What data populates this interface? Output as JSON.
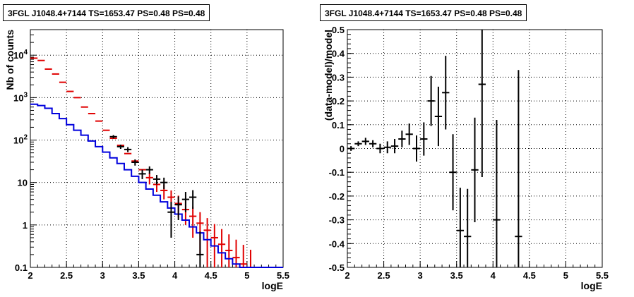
{
  "chart_data": [
    {
      "type": "line",
      "title": "3FGL J1048.4+7144 TS=1653.47 PS=0.48 PS=0.48",
      "xlabel": "logE",
      "ylabel": "Nb of counts",
      "xlim": [
        2,
        5.5
      ],
      "ylim": [
        0.1,
        40000
      ],
      "yscale": "log",
      "grid": true,
      "x_ticks": [
        "2",
        "2.5",
        "3",
        "3.5",
        "4",
        "4.5",
        "5",
        "5.5"
      ],
      "y_ticks": [
        "0.1",
        "1",
        "10",
        "10^2",
        "10^3",
        "10^4"
      ],
      "colors": {
        "data": "#000000",
        "model_counts": "#e00000",
        "model_curve": "#0000dd"
      },
      "series": [
        {
          "role": "model_counts",
          "x": [
            2.05,
            2.15,
            2.25,
            2.35,
            2.45,
            2.55,
            2.65,
            2.75,
            2.85,
            2.95,
            3.05,
            3.15,
            3.25,
            3.35,
            3.45,
            3.55,
            3.65,
            3.75,
            3.85,
            3.95,
            4.05,
            4.15,
            4.25,
            4.35,
            4.45,
            4.55,
            4.65,
            4.75,
            4.85,
            4.95,
            5.05
          ],
          "y": [
            8500,
            7500,
            4700,
            3600,
            2300,
            1400,
            1000,
            600,
            420,
            280,
            170,
            110,
            75,
            48,
            32,
            20,
            13,
            9,
            6.5,
            4.5,
            3.2,
            2.3,
            1.6,
            1.1,
            0.75,
            0.5,
            0.35,
            0.25,
            0.17,
            0.12,
            0.08
          ],
          "yerr": [
            0,
            0,
            0,
            0,
            0,
            0,
            0,
            0,
            0,
            0,
            0,
            0,
            0,
            0,
            0,
            0,
            4,
            3,
            2.5,
            2,
            1.7,
            1.3,
            1.1,
            0.9,
            0.7,
            0.55,
            0.45,
            0.35,
            0.28,
            0.22,
            0.18
          ]
        },
        {
          "role": "model_curve",
          "step_x": [
            2.0,
            2.1,
            2.2,
            2.3,
            2.4,
            2.5,
            2.6,
            2.7,
            2.8,
            2.9,
            3.0,
            3.1,
            3.2,
            3.3,
            3.4,
            3.5,
            3.6,
            3.7,
            3.8,
            3.9,
            4.0,
            4.1,
            4.2,
            4.3,
            4.4,
            4.5,
            4.6,
            4.7,
            4.8,
            4.9,
            5.0,
            5.1,
            5.2,
            5.3,
            5.4,
            5.5
          ],
          "y": [
            700,
            650,
            560,
            420,
            320,
            230,
            170,
            130,
            95,
            70,
            52,
            38,
            28,
            20,
            14,
            10,
            7,
            5,
            3.5,
            2.5,
            1.8,
            1.3,
            0.9,
            0.65,
            0.45,
            0.32,
            0.22,
            0.16,
            0.12,
            0.1,
            0.1,
            0.1,
            0.1,
            0.1,
            0.1
          ]
        },
        {
          "role": "data",
          "x": [
            3.15,
            3.25,
            3.35,
            3.45,
            3.55,
            3.65,
            3.75,
            3.85,
            3.95,
            4.05,
            4.15,
            4.25,
            4.35
          ],
          "y": [
            120,
            70,
            60,
            30,
            16,
            20,
            12,
            10,
            2,
            3,
            4,
            4.5,
            0.2
          ],
          "yerr": [
            11,
            8,
            8,
            5,
            4,
            4,
            3,
            3,
            1.5,
            1.7,
            2,
            2.1,
            0.5
          ]
        }
      ]
    },
    {
      "type": "scatter",
      "title": "3FGL J1048.4+7144 TS=1653.47 PS=0.48 PS=0.48",
      "xlabel": "logE",
      "ylabel": "(data-model)/model",
      "xlim": [
        2,
        5.5
      ],
      "ylim": [
        -0.5,
        0.5
      ],
      "grid": true,
      "x_ticks": [
        "2",
        "2.5",
        "3",
        "3.5",
        "4",
        "4.5",
        "5",
        "5.5"
      ],
      "y_ticks": [
        "-0.5",
        "-0.4",
        "-0.3",
        "-0.2",
        "-0.1",
        "0",
        "0.1",
        "0.2",
        "0.3",
        "0.4",
        "0.5"
      ],
      "series": [
        {
          "x": [
            2.05,
            2.15,
            2.25,
            2.35,
            2.45,
            2.55,
            2.65,
            2.75,
            2.85,
            2.95,
            3.05,
            3.15,
            3.25,
            3.35,
            3.45,
            3.55,
            3.65,
            3.75,
            3.85,
            4.05,
            4.35
          ],
          "y": [
            0.0,
            0.02,
            0.03,
            0.02,
            0.0,
            0.005,
            0.01,
            0.04,
            0.06,
            0.0,
            0.04,
            0.2,
            0.135,
            0.235,
            -0.1,
            -0.345,
            -0.37,
            -0.09,
            0.27,
            -0.3,
            -0.37
          ],
          "yerr": [
            0.01,
            0.01,
            0.015,
            0.015,
            0.02,
            0.025,
            0.03,
            0.035,
            0.045,
            0.055,
            0.07,
            0.105,
            0.125,
            0.155,
            0.16,
            0.18,
            0.2,
            0.22,
            0.39,
            0.42,
            0.7
          ]
        }
      ]
    }
  ]
}
